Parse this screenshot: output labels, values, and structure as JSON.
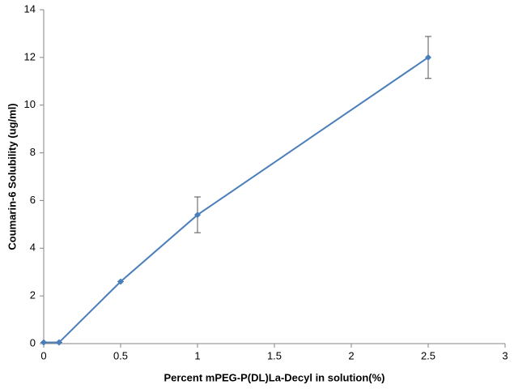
{
  "chart_data": {
    "type": "line",
    "xlabel": "Percent mPEG-P(DL)La-Decyl  in solution(%)",
    "ylabel": "Coumarin-6 Solubility (ug/ml)",
    "x": [
      0,
      0.1,
      0.5,
      1,
      2.5
    ],
    "values": [
      0.05,
      0.05,
      2.6,
      5.4,
      12.0
    ],
    "errors": [
      0,
      0,
      0,
      0.75,
      0.88
    ],
    "color": "#4a7ebb",
    "xlim": [
      0,
      3
    ],
    "xticks": [
      0,
      0.5,
      1,
      1.5,
      2,
      2.5,
      3
    ],
    "ylim": [
      0,
      14
    ],
    "yticks": [
      0,
      2,
      4,
      6,
      8,
      10,
      12,
      14
    ],
    "grid": false
  }
}
